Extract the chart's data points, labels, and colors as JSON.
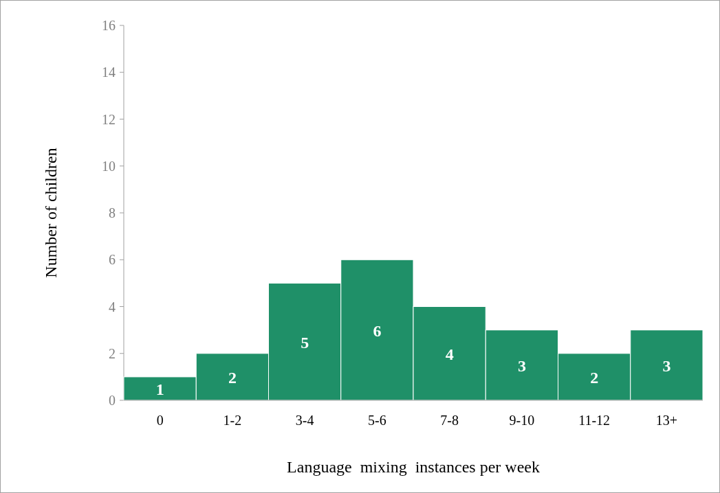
{
  "chart_data": {
    "type": "bar",
    "xlabel": "Language  mixing  instances per week",
    "ylabel": "Number of children",
    "categories": [
      "0",
      "1-2",
      "3-4",
      "5-6",
      "7-8",
      "9-10",
      "11-12",
      "13+"
    ],
    "values": [
      1,
      2,
      5,
      6,
      4,
      3,
      2,
      3
    ],
    "color": "#1f9068",
    "ylim": [
      0,
      16
    ],
    "yticks": [
      0,
      2,
      4,
      6,
      8,
      10,
      12,
      14,
      16
    ],
    "data_labels": true
  }
}
